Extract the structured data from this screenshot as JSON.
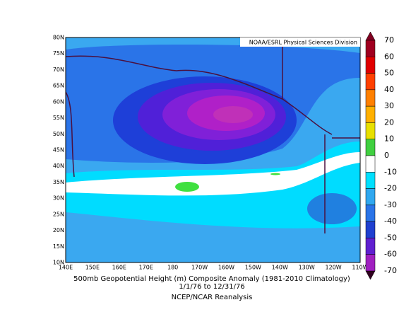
{
  "header": {
    "credit": "NOAA/ESRL Physical Sciences Division"
  },
  "map": {
    "lat_labels": [
      "80N",
      "75N",
      "70N",
      "65N",
      "60N",
      "55N",
      "50N",
      "45N",
      "40N",
      "35N",
      "30N",
      "25N",
      "20N",
      "15N",
      "10N"
    ],
    "lon_labels": [
      "140E",
      "150E",
      "160E",
      "170E",
      "180",
      "170W",
      "160W",
      "150W",
      "140W",
      "130W",
      "120W",
      "110W"
    ]
  },
  "footer": {
    "title": "500mb Geopotential Height (m) Composite Anomaly (1981-2010 Climatology)",
    "dates": "1/1/76  to 12/31/76",
    "source": "NCEP/NCAR Reanalysis"
  },
  "colorbar": {
    "labels": [
      "70",
      "60",
      "50",
      "40",
      "30",
      "20",
      "10",
      "0",
      "-10",
      "-20",
      "-30",
      "-40",
      "-50",
      "-60",
      "-70"
    ]
  }
}
